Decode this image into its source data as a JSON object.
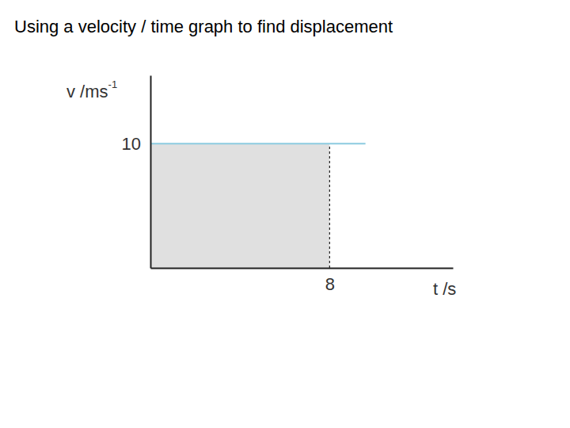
{
  "chart_data": {
    "type": "line",
    "title": "Using a velocity / time graph to find displacement",
    "x_label": "t /s",
    "y_label": {
      "text": "v /ms",
      "superscript": "-1"
    },
    "x": [
      0,
      9.6
    ],
    "values": [
      10,
      10
    ],
    "color": "#8ccbe0",
    "area": {
      "x": [
        0,
        8
      ],
      "values": [
        10,
        10
      ],
      "color": "#e0e0e0"
    },
    "xlim": [
      0,
      13.5
    ],
    "ylim": [
      0,
      15.5
    ],
    "xticks": [
      8
    ],
    "yticks": [
      10
    ],
    "grid": false
  }
}
